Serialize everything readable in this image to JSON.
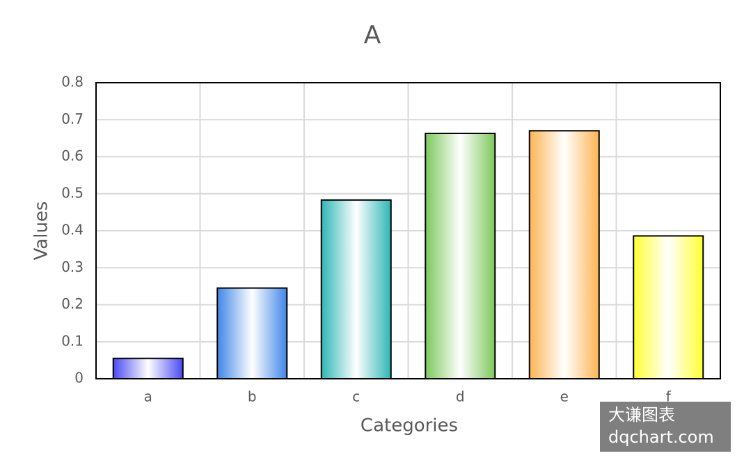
{
  "chart_data": {
    "type": "bar",
    "title": "A",
    "x_label": "Categories",
    "y_label": "Values",
    "categories": [
      "a",
      "b",
      "c",
      "d",
      "e",
      "f"
    ],
    "values": [
      0.055,
      0.245,
      0.483,
      0.663,
      0.67,
      0.386
    ],
    "colors": [
      "#4a4af2",
      "#3f86e8",
      "#2fb6b6",
      "#7cc95b",
      "#ffb454",
      "#ffff33"
    ],
    "ylim": [
      0,
      0.8
    ],
    "yticks": [
      0,
      0.1,
      0.2,
      0.3,
      0.4,
      0.5,
      0.6,
      0.7,
      0.8
    ],
    "grid": true,
    "watermark": [
      "大谦图表",
      "dqchart.com"
    ]
  }
}
